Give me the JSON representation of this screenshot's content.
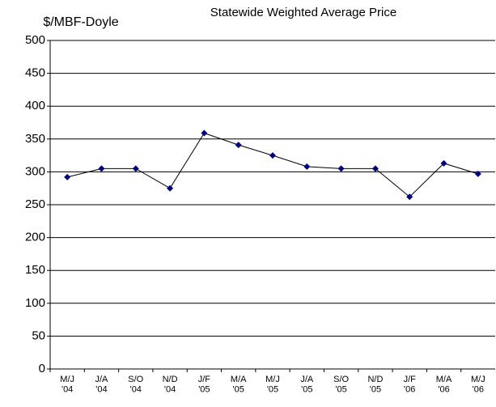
{
  "chart_data": {
    "type": "line",
    "title": "Statewide Weighted Average Price",
    "y_label": "$/MBF-Doyle",
    "categories": [
      "M/J\n'04",
      "J/A\n'04",
      "S/O\n'04",
      "N/D\n'04",
      "J/F\n'05",
      "M/A\n'05",
      "M/J\n'05",
      "J/A\n'05",
      "S/O\n'05",
      "N/D\n'05",
      "J/F\n'06",
      "M/A\n'06",
      "M/J\n'06"
    ],
    "series": [
      {
        "name": "Statewide Weighted Average Price",
        "color": "#000080",
        "line_color": "#000000",
        "values": [
          292,
          305,
          305,
          275,
          359,
          341,
          325,
          308,
          305,
          305,
          262,
          313,
          297
        ]
      }
    ],
    "ylim": [
      0,
      500
    ],
    "yticks": [
      0,
      50,
      100,
      150,
      200,
      250,
      300,
      350,
      400,
      450,
      500
    ],
    "grid": true
  }
}
